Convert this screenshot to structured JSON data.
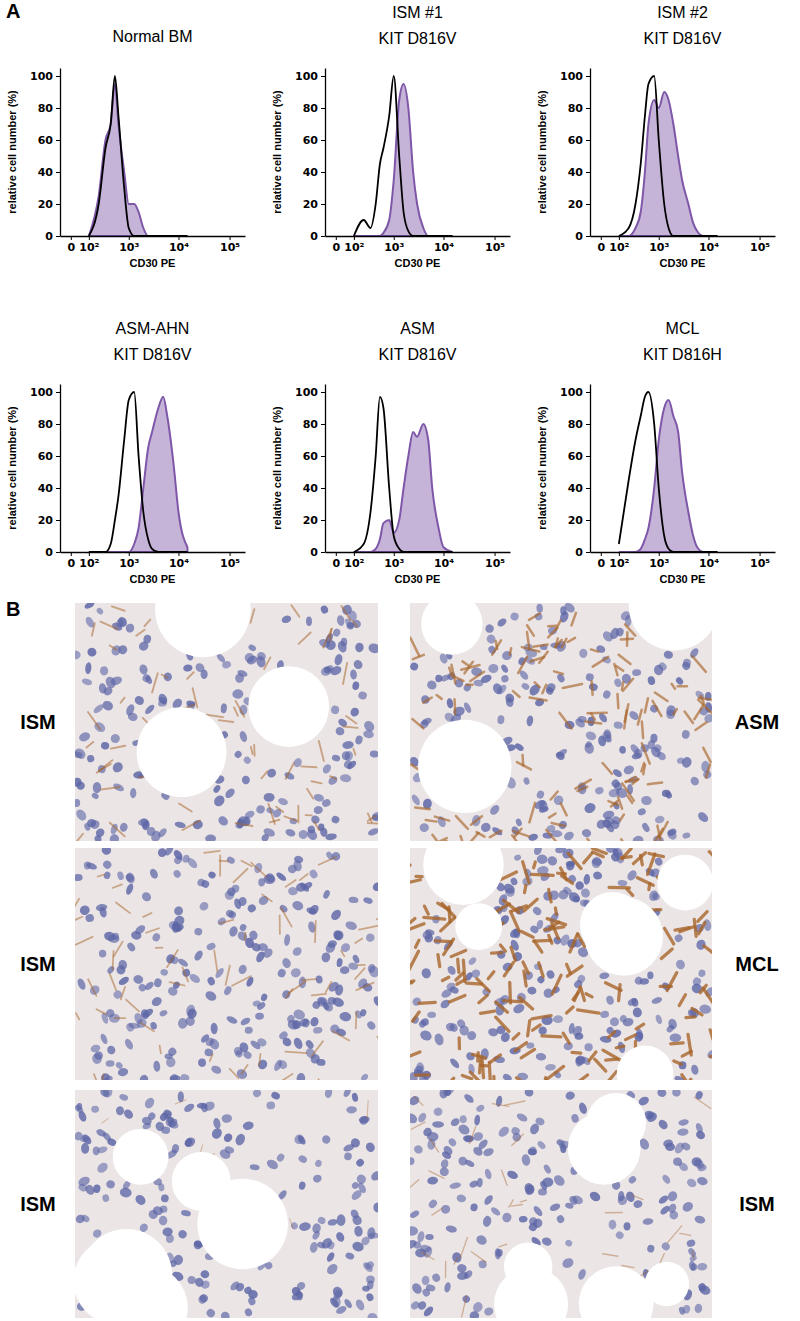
{
  "panel_labels": [
    "A",
    "B"
  ],
  "chart_data": [
    {
      "type": "histogram_overlay",
      "title": "Normal BM",
      "x_label": "CD30 PE",
      "y_label": "relative cell number (%)",
      "log": "x",
      "xlim": [
        -50,
        200000
      ],
      "ylim": [
        0,
        105
      ],
      "xticks": [
        0,
        {
          "value": 100,
          "label": "10²"
        },
        {
          "value": 1000,
          "label": "10³"
        },
        {
          "value": 10000,
          "label": "10⁴"
        },
        {
          "value": 100000,
          "label": "10⁵"
        }
      ],
      "yticks": [
        0,
        20,
        40,
        60,
        80,
        100
      ],
      "x": [
        100,
        200,
        300,
        400,
        500,
        600,
        800,
        1000,
        1300,
        1600,
        2000,
        2500,
        3000,
        4000,
        5000,
        6000,
        8000,
        10000,
        15000
      ],
      "series": [
        {
          "type": "area",
          "color": "#7e57a8",
          "values": [
            0,
            25,
            60,
            70,
            95,
            70,
            40,
            20,
            20,
            15,
            5,
            0,
            0,
            0,
            0,
            0,
            0,
            0,
            0
          ]
        },
        {
          "type": "line",
          "color": "#000000",
          "values": [
            0,
            20,
            55,
            70,
            100,
            75,
            30,
            5,
            0,
            0,
            0,
            0,
            0,
            0,
            0,
            0,
            0,
            0,
            0
          ]
        }
      ]
    },
    {
      "type": "histogram_overlay",
      "title": "ISM #1",
      "subtitle": "KIT D816V",
      "x_label": "CD30 PE",
      "y_label": "relative cell number (%)",
      "log": "x",
      "xlim": [
        -50,
        200000
      ],
      "ylim": [
        0,
        105
      ],
      "xticks": [
        0,
        {
          "value": 100,
          "label": "10²"
        },
        {
          "value": 1000,
          "label": "10³"
        },
        {
          "value": 10000,
          "label": "10⁴"
        },
        {
          "value": 100000,
          "label": "10⁵"
        }
      ],
      "yticks": [
        0,
        20,
        40,
        60,
        80,
        100
      ],
      "x": [
        100,
        200,
        300,
        400,
        500,
        600,
        800,
        1000,
        1300,
        1600,
        2000,
        2500,
        3000,
        4000,
        5000,
        6000,
        8000,
        10000,
        15000
      ],
      "series": [
        {
          "type": "area",
          "color": "#7e57a8",
          "values": [
            0,
            0,
            0,
            0,
            0,
            2,
            10,
            35,
            85,
            95,
            80,
            40,
            20,
            5,
            0,
            0,
            0,
            0,
            0
          ]
        },
        {
          "type": "line",
          "color": "#000000",
          "values": [
            0,
            10,
            5,
            20,
            45,
            55,
            75,
            100,
            50,
            15,
            3,
            0,
            0,
            0,
            0,
            0,
            0,
            0,
            0
          ]
        }
      ]
    },
    {
      "type": "histogram_overlay",
      "title": "ISM #2",
      "subtitle": "KIT D816V",
      "x_label": "CD30 PE",
      "y_label": "relative cell number (%)",
      "log": "x",
      "xlim": [
        -50,
        200000
      ],
      "ylim": [
        0,
        105
      ],
      "xticks": [
        0,
        {
          "value": 100,
          "label": "10²"
        },
        {
          "value": 1000,
          "label": "10³"
        },
        {
          "value": 10000,
          "label": "10⁴"
        },
        {
          "value": 100000,
          "label": "10⁵"
        }
      ],
      "yticks": [
        0,
        20,
        40,
        60,
        80,
        100
      ],
      "x": [
        100,
        200,
        300,
        400,
        500,
        600,
        800,
        1000,
        1300,
        1600,
        2000,
        2500,
        3000,
        4000,
        5000,
        6000,
        8000,
        10000,
        15000
      ],
      "series": [
        {
          "type": "area",
          "color": "#7e57a8",
          "values": [
            0,
            0,
            5,
            15,
            40,
            70,
            85,
            80,
            90,
            85,
            70,
            50,
            35,
            20,
            8,
            3,
            0,
            0,
            0
          ]
        },
        {
          "type": "line",
          "color": "#000000",
          "values": [
            0,
            5,
            20,
            45,
            75,
            95,
            100,
            60,
            20,
            5,
            0,
            0,
            0,
            0,
            0,
            0,
            0,
            0,
            0
          ]
        }
      ]
    },
    {
      "type": "histogram_overlay",
      "title": "ASM-AHN",
      "subtitle": "KIT D816V",
      "x_label": "CD30 PE",
      "y_label": "relative cell number (%)",
      "log": "x",
      "xlim": [
        -50,
        200000
      ],
      "ylim": [
        0,
        105
      ],
      "xticks": [
        0,
        {
          "value": 100,
          "label": "10²"
        },
        {
          "value": 1000,
          "label": "10³"
        },
        {
          "value": 10000,
          "label": "10⁴"
        },
        {
          "value": 100000,
          "label": "10⁵"
        }
      ],
      "yticks": [
        0,
        20,
        40,
        60,
        80,
        100
      ],
      "x": [
        100,
        200,
        300,
        400,
        500,
        600,
        800,
        1000,
        1300,
        1600,
        2000,
        2500,
        3000,
        4000,
        5000,
        6000,
        8000,
        10000,
        15000
      ],
      "series": [
        {
          "type": "area",
          "color": "#7e57a8",
          "values": [
            0,
            0,
            0,
            0,
            0,
            0,
            0,
            0,
            5,
            15,
            40,
            65,
            75,
            90,
            97,
            85,
            55,
            25,
            3
          ]
        },
        {
          "type": "line",
          "color": "#000000",
          "values": [
            0,
            0,
            0,
            5,
            20,
            35,
            70,
            95,
            100,
            60,
            25,
            8,
            2,
            0,
            0,
            0,
            0,
            0,
            0
          ]
        }
      ]
    },
    {
      "type": "histogram_overlay",
      "title": "ASM",
      "subtitle": "KIT D816V",
      "x_label": "CD30 PE",
      "y_label": "relative cell number (%)",
      "log": "x",
      "xlim": [
        -50,
        200000
      ],
      "ylim": [
        0,
        105
      ],
      "xticks": [
        0,
        {
          "value": 100,
          "label": "10²"
        },
        {
          "value": 1000,
          "label": "10³"
        },
        {
          "value": 10000,
          "label": "10⁴"
        },
        {
          "value": 100000,
          "label": "10⁵"
        }
      ],
      "yticks": [
        0,
        20,
        40,
        60,
        80,
        100
      ],
      "x": [
        100,
        200,
        300,
        400,
        500,
        600,
        800,
        1000,
        1300,
        1600,
        2000,
        2500,
        3000,
        4000,
        5000,
        6000,
        8000,
        10000,
        15000
      ],
      "series": [
        {
          "type": "area",
          "color": "#7e57a8",
          "values": [
            0,
            0,
            0,
            2,
            8,
            18,
            20,
            12,
            20,
            40,
            60,
            75,
            72,
            80,
            70,
            40,
            15,
            3,
            0
          ]
        },
        {
          "type": "line",
          "color": "#000000",
          "values": [
            0,
            5,
            25,
            60,
            97,
            90,
            40,
            10,
            2,
            0,
            0,
            0,
            0,
            0,
            0,
            0,
            0,
            0,
            0
          ]
        }
      ]
    },
    {
      "type": "histogram_overlay",
      "title": "MCL",
      "subtitle": "KIT D816H",
      "x_label": "CD30 PE",
      "y_label": "relative cell number (%)",
      "log": "x",
      "xlim": [
        -50,
        200000
      ],
      "ylim": [
        0,
        105
      ],
      "xticks": [
        0,
        {
          "value": 100,
          "label": "10²"
        },
        {
          "value": 1000,
          "label": "10³"
        },
        {
          "value": 10000,
          "label": "10⁴"
        },
        {
          "value": 100000,
          "label": "10⁵"
        }
      ],
      "yticks": [
        0,
        20,
        40,
        60,
        80,
        100
      ],
      "x": [
        100,
        200,
        300,
        400,
        500,
        600,
        800,
        1000,
        1300,
        1600,
        2000,
        2500,
        3000,
        4000,
        5000,
        6000,
        8000,
        10000,
        15000
      ],
      "series": [
        {
          "type": "area",
          "color": "#7e57a8",
          "values": [
            0,
            0,
            0,
            2,
            8,
            15,
            40,
            70,
            90,
            95,
            85,
            75,
            50,
            25,
            10,
            3,
            0,
            0,
            0
          ]
        },
        {
          "type": "line",
          "color": "#000000",
          "values": [
            5,
            45,
            70,
            85,
            97,
            100,
            80,
            40,
            10,
            2,
            0,
            0,
            0,
            0,
            0,
            0,
            0,
            0,
            0
          ]
        }
      ]
    }
  ],
  "micrographs": [
    {
      "label": "ISM"
    },
    {
      "label": "ASM"
    },
    {
      "label": "ISM"
    },
    {
      "label": "MCL"
    },
    {
      "label": "ISM"
    },
    {
      "label": "ISM"
    }
  ]
}
